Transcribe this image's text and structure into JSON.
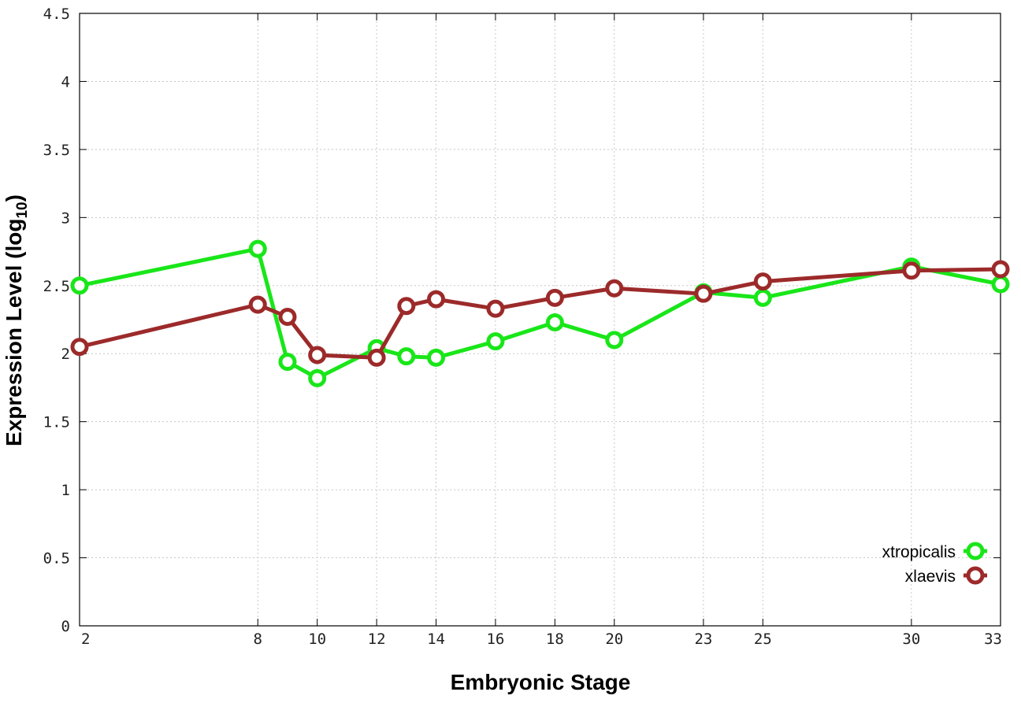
{
  "chart_data": {
    "type": "line",
    "title": "",
    "xlabel": "Embryonic Stage",
    "ylabel_main": "Expression Level (log",
    "ylabel_sub": "10",
    "ylabel_close": ")",
    "xlim": [
      2,
      33
    ],
    "ylim": [
      0,
      4.5
    ],
    "grid": true,
    "legend_position": "bottom-right",
    "x_ticks": [
      2,
      8,
      10,
      12,
      14,
      16,
      18,
      20,
      23,
      25,
      30,
      33
    ],
    "x_tick_labels": [
      "2",
      "8",
      "10",
      "12",
      "14",
      "16",
      "18",
      "20",
      "23",
      "25",
      "30",
      "33"
    ],
    "y_ticks": [
      0,
      0.5,
      1,
      1.5,
      2,
      2.5,
      3,
      3.5,
      4,
      4.5
    ],
    "y_tick_labels": [
      "0",
      "0.5",
      "1",
      "1.5",
      "2",
      "2.5",
      "3",
      "3.5",
      "4",
      "4.5"
    ],
    "series": [
      {
        "name": "xtropicalis",
        "color": "#19e619",
        "x": [
          2,
          8,
          9,
          10,
          12,
          13,
          14,
          16,
          18,
          20,
          23,
          25,
          30,
          33
        ],
        "y": [
          2.5,
          2.77,
          1.94,
          1.82,
          2.04,
          1.98,
          1.97,
          2.09,
          2.23,
          2.1,
          2.45,
          2.41,
          2.64,
          2.51
        ]
      },
      {
        "name": "xlaevis",
        "color": "#9c2a2a",
        "x": [
          2,
          8,
          9,
          10,
          12,
          13,
          14,
          16,
          18,
          20,
          23,
          25,
          30,
          33
        ],
        "y": [
          2.05,
          2.36,
          2.27,
          1.99,
          1.97,
          2.35,
          2.4,
          2.33,
          2.41,
          2.48,
          2.44,
          2.53,
          2.61,
          2.62
        ]
      }
    ]
  }
}
